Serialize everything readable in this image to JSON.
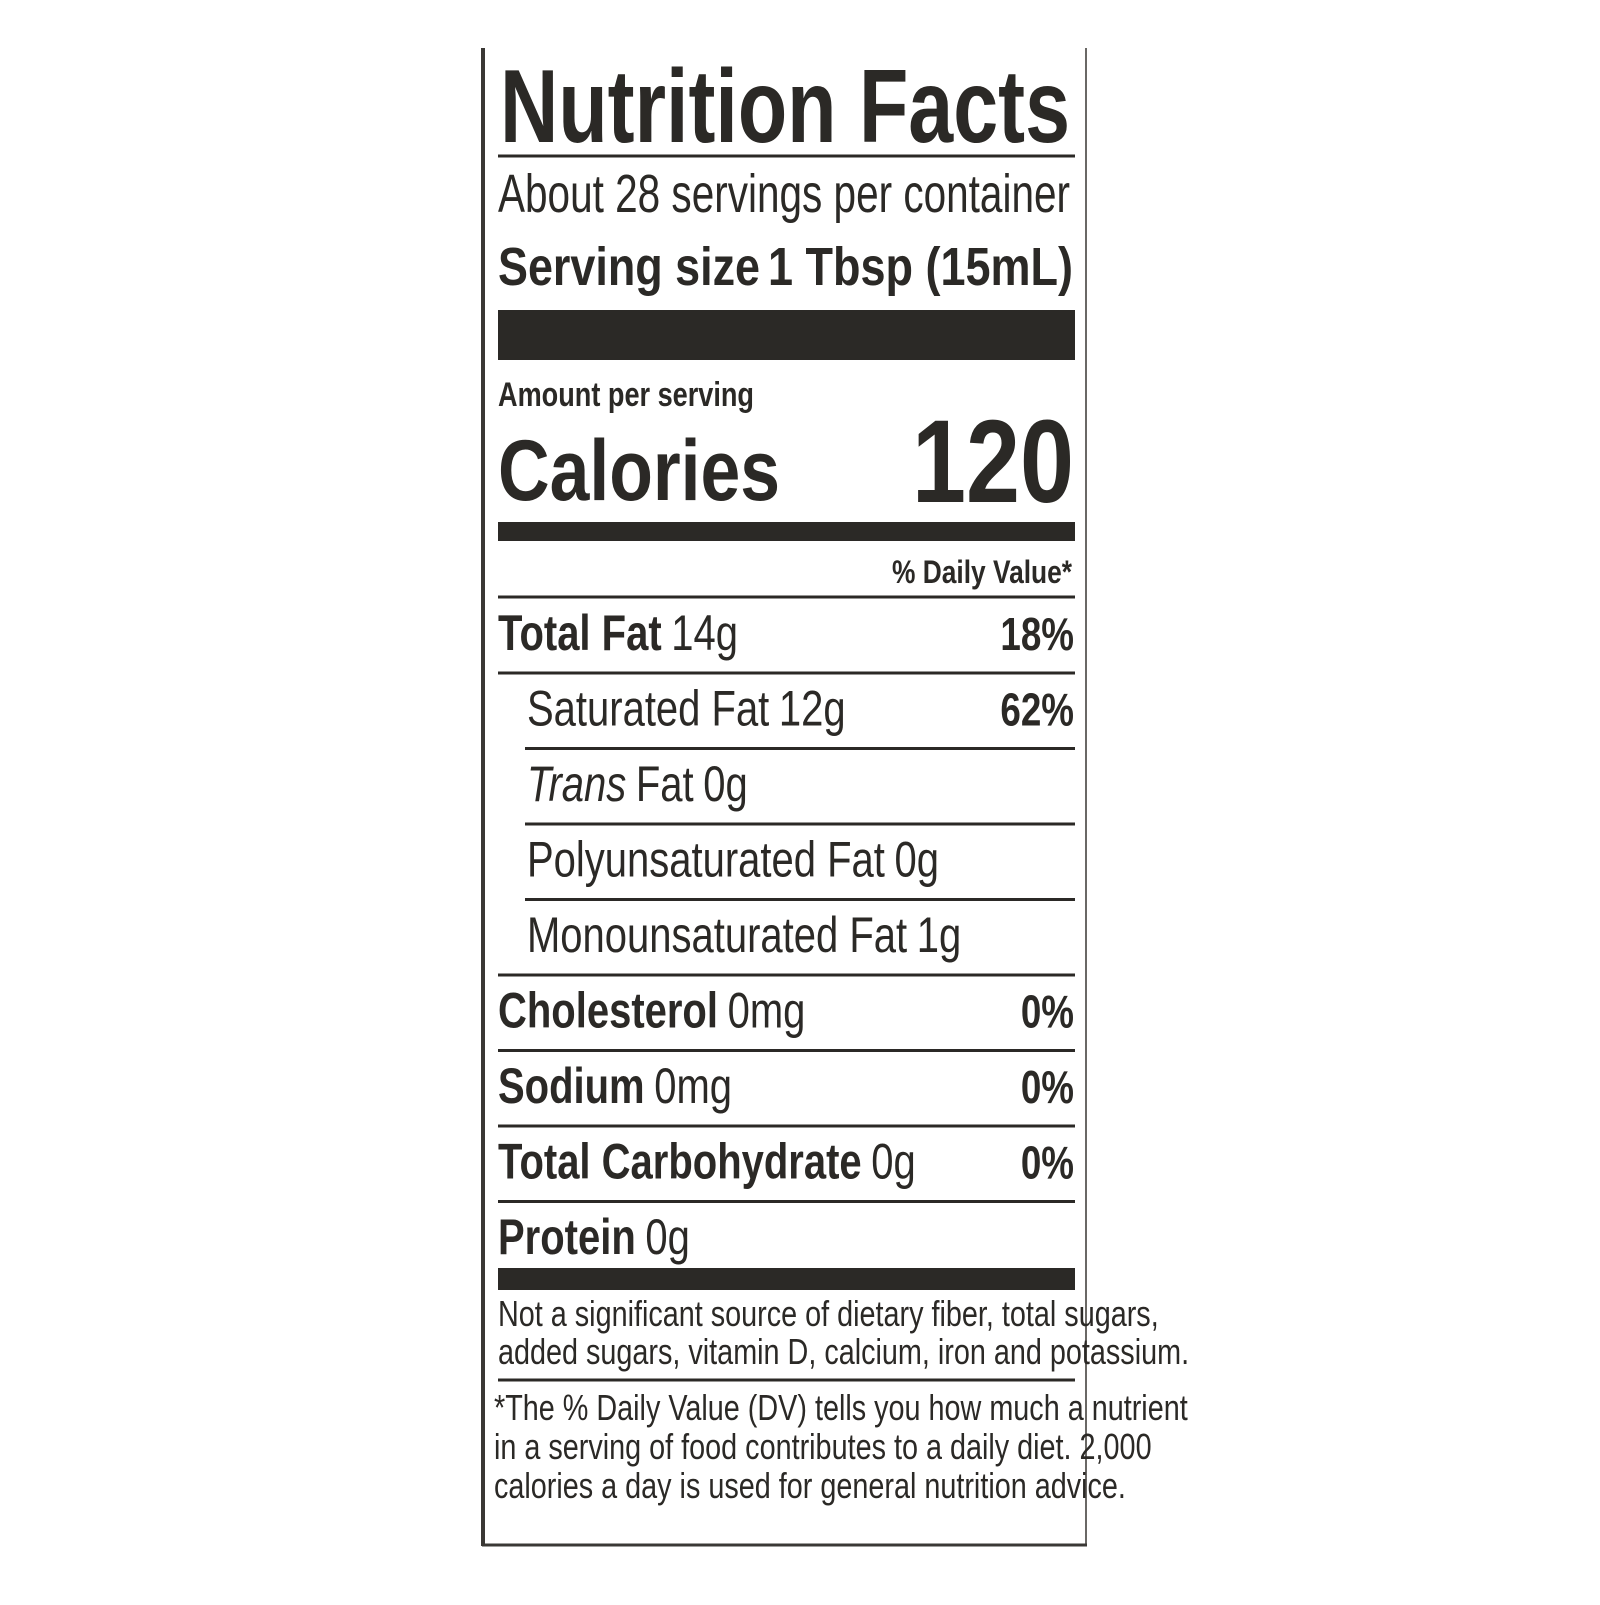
{
  "label": {
    "title": "Nutrition Facts",
    "servings": "About 28 servings per container",
    "serving_size": {
      "label": "Serving size",
      "value": "1 Tbsp (15mL)"
    },
    "amount_per_serving": "Amount per serving",
    "calories": {
      "label": "Calories",
      "value": "120"
    },
    "daily_value_header": "% Daily Value*",
    "rows": [
      {
        "name": "Total Fat",
        "amount": "14g",
        "dv": "18%",
        "bold": true,
        "indent": false
      },
      {
        "name": "Saturated Fat",
        "amount": "12g",
        "dv": "62%",
        "bold": false,
        "indent": true
      },
      {
        "name_italic": "Trans",
        "name": "Fat",
        "amount": "0g",
        "bold": false,
        "indent": true
      },
      {
        "name": "Polyunsaturated Fat",
        "amount": "0g",
        "bold": false,
        "indent": true
      },
      {
        "name": "Monounsaturated Fat",
        "amount": "1g",
        "bold": false,
        "indent": true
      },
      {
        "name": "Cholesterol",
        "amount": "0mg",
        "dv": "0%",
        "bold": true,
        "indent": false
      },
      {
        "name": "Sodium",
        "amount": "0mg",
        "dv": "0%",
        "bold": true,
        "indent": false
      },
      {
        "name": "Total Carbohydrate",
        "amount": "0g",
        "dv": "0%",
        "bold": true,
        "indent": false
      },
      {
        "name": "Protein",
        "amount": "0g",
        "bold": true,
        "indent": false
      }
    ],
    "not_significant": [
      "Not a significant source of dietary fiber, total sugars,",
      "added sugars, vitamin D, calcium, iron and potassium."
    ],
    "footnote": [
      "*The % Daily Value (DV) tells you how much a nutrient",
      "in a serving of food contributes to a daily diet. 2,000",
      "calories a day is used for general nutrition advice."
    ]
  }
}
